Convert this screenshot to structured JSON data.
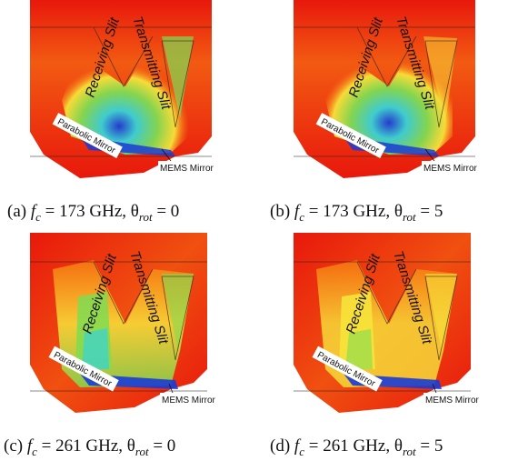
{
  "figure": {
    "labels": {
      "receiving_slit": "Receiving Slit",
      "transmitting_slit": "Transmitting Slit",
      "parabolic_mirror": "Parabolic Mirror",
      "mems_mirror": "MEMS Mirror"
    },
    "panels": [
      {
        "id": "a",
        "tag": "(a)",
        "freq": "173 GHz",
        "rot": "0",
        "colormap": "high"
      },
      {
        "id": "b",
        "tag": "(b)",
        "freq": "173 GHz",
        "rot": "5",
        "colormap": "high"
      },
      {
        "id": "c",
        "tag": "(c)",
        "freq": "261 GHz",
        "rot": "0",
        "colormap": "low"
      },
      {
        "id": "d",
        "tag": "(d)",
        "freq": "261 GHz",
        "rot": "5",
        "colormap": "low"
      }
    ],
    "colors": {
      "red": "#e8180c",
      "orange": "#f87a10",
      "yellow": "#f7e33a",
      "green": "#7fdc52",
      "cyan": "#36d3d9",
      "blue": "#1a3cd6"
    }
  }
}
